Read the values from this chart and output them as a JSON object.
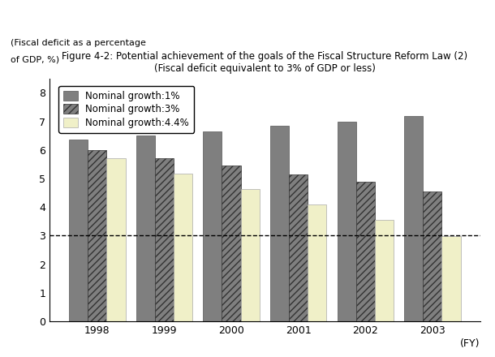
{
  "title_line1": "Figure 4-2: Potential achievement of the goals of the Fiscal Structure Reform Law (2)",
  "title_line2": "(Fiscal deficit equivalent to 3% of GDP or less)",
  "ylabel_line1": "(Fiscal deficit as a percentage",
  "ylabel_line2": "of GDP, %)",
  "xlabel": "(FY)",
  "categories": [
    "1998",
    "1999",
    "2000",
    "2001",
    "2002",
    "2003"
  ],
  "series": [
    {
      "label": "Nominal growth:1%",
      "values": [
        6.35,
        6.5,
        6.65,
        6.85,
        7.0,
        7.2
      ]
    },
    {
      "label": "Nominal growth:3%",
      "values": [
        6.0,
        5.7,
        5.45,
        5.15,
        4.9,
        4.55
      ]
    },
    {
      "label": "Nominal growth:4.4%",
      "values": [
        5.7,
        5.17,
        4.63,
        4.1,
        3.55,
        2.99
      ]
    }
  ],
  "bar_colors": [
    "#7f7f7f",
    "#7f7f7f",
    "#f0f0c8"
  ],
  "hatch_patterns": [
    "",
    "////",
    ""
  ],
  "hatch_edgecolors": [
    "#555555",
    "#333333",
    "#aaaaaa"
  ],
  "bar_edgecolors": [
    "#555555",
    "#333333",
    "#aaaaaa"
  ],
  "dashed_line_y": 3.0,
  "ylim": [
    0,
    8.5
  ],
  "yticks": [
    0,
    1,
    2,
    3,
    4,
    5,
    6,
    7,
    8
  ],
  "bar_width": 0.28,
  "background_color": "#ffffff",
  "title_fontsize": 8.5,
  "axis_fontsize": 9,
  "tick_fontsize": 9,
  "legend_fontsize": 8.5
}
